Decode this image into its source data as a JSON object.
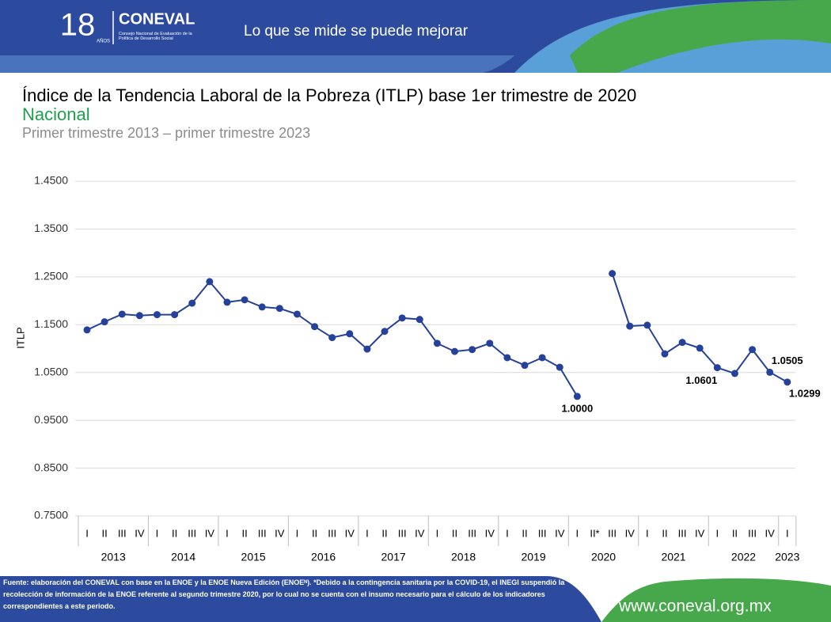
{
  "header": {
    "logo_years": "18",
    "logo_years_word": "AÑOS",
    "brand": "CONEVAL",
    "brand_sub": "Consejo Nacional de Evaluación de la Política de Desarrollo Social",
    "slogan": "Lo que se mide se puede mejorar"
  },
  "chart_data": {
    "type": "line",
    "title": "Índice de la Tendencia Laboral de la Pobreza (ITLP) base 1er trimestre de 2020",
    "subtitle": "Nacional",
    "period": "Primer trimestre 2013 – primer trimestre 2023",
    "y_label": "ITLP",
    "categories": [
      "I",
      "II",
      "III",
      "IV",
      "I",
      "II",
      "III",
      "IV",
      "I",
      "II",
      "III",
      "IV",
      "I",
      "II",
      "III",
      "IV",
      "I",
      "II",
      "III",
      "IV",
      "I",
      "II",
      "III",
      "IV",
      "I",
      "II",
      "III",
      "IV",
      "I",
      "II*",
      "III",
      "IV",
      "I",
      "II",
      "III",
      "IV",
      "I",
      "II",
      "III",
      "IV",
      "I"
    ],
    "year_groups": [
      {
        "label": "2013",
        "count": 4
      },
      {
        "label": "2014",
        "count": 4
      },
      {
        "label": "2015",
        "count": 4
      },
      {
        "label": "2016",
        "count": 4
      },
      {
        "label": "2017",
        "count": 4
      },
      {
        "label": "2018",
        "count": 4
      },
      {
        "label": "2019",
        "count": 4
      },
      {
        "label": "2020",
        "count": 4
      },
      {
        "label": "2021",
        "count": 4
      },
      {
        "label": "2022",
        "count": 4
      },
      {
        "label": "2023",
        "count": 1
      }
    ],
    "series": [
      {
        "name": "ITLP",
        "color": "#26419a",
        "values": [
          1.139,
          1.156,
          1.172,
          1.169,
          1.171,
          1.171,
          1.195,
          1.24,
          1.197,
          1.202,
          1.187,
          1.184,
          1.172,
          1.146,
          1.123,
          1.131,
          1.099,
          1.136,
          1.164,
          1.161,
          1.111,
          1.094,
          1.098,
          1.111,
          1.081,
          1.065,
          1.081,
          1.061,
          1.0,
          null,
          1.257,
          1.147,
          1.149,
          1.089,
          1.113,
          1.101,
          1.0601,
          1.048,
          1.098,
          1.0505,
          1.0299
        ],
        "value_labels": [
          null,
          null,
          null,
          null,
          null,
          null,
          null,
          null,
          null,
          null,
          null,
          null,
          null,
          null,
          null,
          null,
          null,
          null,
          null,
          null,
          null,
          null,
          null,
          null,
          null,
          null,
          null,
          null,
          "1.0000",
          null,
          null,
          null,
          null,
          null,
          null,
          null,
          "1.0601",
          null,
          null,
          "1.0505",
          "1.0299"
        ]
      }
    ],
    "ylim": [
      0.75,
      1.45
    ],
    "yticks": [
      {
        "value": 0.75,
        "label": "0.7500"
      },
      {
        "value": 0.85,
        "label": "0.8500"
      },
      {
        "value": 0.95,
        "label": "0.9500"
      },
      {
        "value": 1.05,
        "label": "1.0500"
      },
      {
        "value": 1.15,
        "label": "1.1500"
      },
      {
        "value": 1.25,
        "label": "1.2500"
      },
      {
        "value": 1.35,
        "label": "1.3500"
      },
      {
        "value": 1.45,
        "label": "1.4500"
      }
    ],
    "grid": true
  },
  "footer": {
    "note": "Fuente: elaboración del CONEVAL con base en la ENOE y la ENOE Nueva Edición (ENOEᴺ). *Debido a la contingencia sanitaria por la COVID-19, el INEGI suspendió la recolección de información de la ENOE referente al segundo trimestre 2020, por lo cual no se cuenta con el insumo necesario para el cálculo de los indicadores correspondientes a este periodo.",
    "url": "www.coneval.org.mx"
  }
}
